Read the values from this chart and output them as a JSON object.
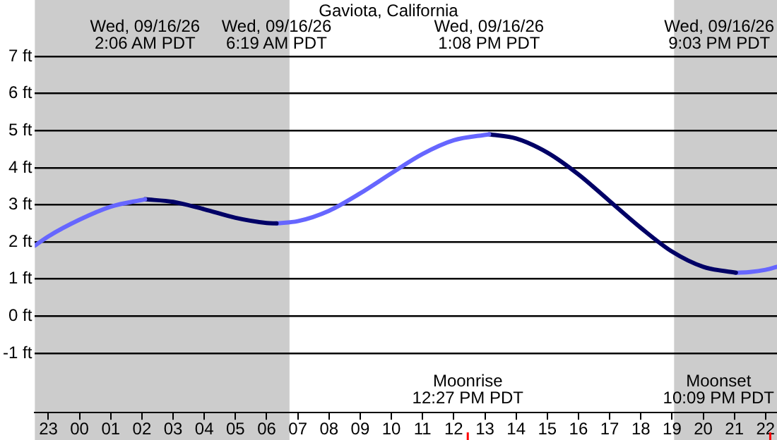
{
  "chart_data": {
    "type": "line",
    "title": "Gaviota, California",
    "series": [
      {
        "color": "#6666ff",
        "x": [
          "--09-15T22:34",
          "--09-15T23:00",
          "--09-16T00:00",
          "--09-16T01:00",
          "--09-16T02:06"
        ],
        "values": [
          1.9,
          2.15,
          2.6,
          2.95,
          3.15
        ]
      },
      {
        "color": "#000066",
        "x": [
          "--09-16T02:06",
          "--09-16T03:00",
          "--09-16T04:00",
          "--09-16T05:00",
          "--09-16T06:00",
          "--09-16T06:19"
        ],
        "values": [
          3.15,
          3.08,
          2.88,
          2.65,
          2.51,
          2.5
        ]
      },
      {
        "color": "#6666ff",
        "x": [
          "--09-16T06:19",
          "--09-16T07:00",
          "--09-16T08:00",
          "--09-16T09:00",
          "--09-16T10:00",
          "--09-16T11:00",
          "--09-16T12:00",
          "--09-16T13:08"
        ],
        "values": [
          2.5,
          2.56,
          2.84,
          3.31,
          3.85,
          4.37,
          4.74,
          4.9
        ]
      },
      {
        "color": "#000066",
        "x": [
          "--09-16T13:08",
          "--09-16T14:00",
          "--09-16T15:00",
          "--09-16T16:00",
          "--09-16T17:00",
          "--09-16T18:00",
          "--09-16T19:00",
          "--09-16T20:00",
          "--09-16T21:03"
        ],
        "values": [
          4.9,
          4.79,
          4.41,
          3.82,
          3.1,
          2.38,
          1.74,
          1.33,
          1.17
        ]
      },
      {
        "color": "#6666ff",
        "x": [
          "--09-16T21:03",
          "--09-16T21:30",
          "--09-16T22:00",
          "--09-16T22:22"
        ],
        "values": [
          1.17,
          1.19,
          1.25,
          1.33
        ]
      }
    ],
    "xlim": [
      "--09-15T22:34",
      "--09-16T22:22"
    ],
    "xticks": [
      {
        "value": "--09-15T23:00",
        "label": "23"
      },
      {
        "value": "--09-16T00:00",
        "label": "00"
      },
      {
        "value": "--09-16T01:00",
        "label": "01"
      },
      {
        "value": "--09-16T02:00",
        "label": "02"
      },
      {
        "value": "--09-16T03:00",
        "label": "03"
      },
      {
        "value": "--09-16T04:00",
        "label": "04"
      },
      {
        "value": "--09-16T05:00",
        "label": "05"
      },
      {
        "value": "--09-16T06:00",
        "label": "06"
      },
      {
        "value": "--09-16T07:00",
        "label": "07"
      },
      {
        "value": "--09-16T08:00",
        "label": "08"
      },
      {
        "value": "--09-16T09:00",
        "label": "09"
      },
      {
        "value": "--09-16T10:00",
        "label": "10"
      },
      {
        "value": "--09-16T11:00",
        "label": "11"
      },
      {
        "value": "--09-16T12:00",
        "label": "12"
      },
      {
        "value": "--09-16T13:00",
        "label": "13"
      },
      {
        "value": "--09-16T14:00",
        "label": "14"
      },
      {
        "value": "--09-16T15:00",
        "label": "15"
      },
      {
        "value": "--09-16T16:00",
        "label": "16"
      },
      {
        "value": "--09-16T17:00",
        "label": "17"
      },
      {
        "value": "--09-16T18:00",
        "label": "18"
      },
      {
        "value": "--09-16T19:00",
        "label": "19"
      },
      {
        "value": "--09-16T20:00",
        "label": "20"
      },
      {
        "value": "--09-16T21:00",
        "label": "21"
      },
      {
        "value": "--09-16T22:00",
        "label": "22"
      }
    ],
    "ylim": [
      -2.6,
      7
    ],
    "yticks": [
      {
        "value": -1,
        "label": "-1 ft"
      },
      {
        "value": 0,
        "label": "0 ft"
      },
      {
        "value": 1,
        "label": "1 ft"
      },
      {
        "value": 2,
        "label": "2 ft"
      },
      {
        "value": 3,
        "label": "3 ft"
      },
      {
        "value": 4,
        "label": "4 ft"
      },
      {
        "value": 5,
        "label": "5 ft"
      },
      {
        "value": 6,
        "label": "6 ft"
      },
      {
        "value": 7,
        "label": "7 ft"
      }
    ],
    "grid": "y",
    "marker": "none",
    "line_style": "solid",
    "bands": [
      {
        "axis": "x",
        "from": "--09-15T22:34",
        "to": "--09-16T06:44",
        "color": "#cccccc"
      },
      {
        "axis": "x",
        "from": "--09-16T19:04",
        "to": "--09-16T22:22",
        "color": "#cccccc"
      }
    ],
    "ref_lines": [
      {
        "axis": "x",
        "value": "--09-16T12:27",
        "label": "Moonrise\n12:27 PM PDT",
        "color": "#ff0000"
      },
      {
        "axis": "x",
        "value": "--09-16T22:09",
        "label": "Moonset\n10:09 PM PDT",
        "color": "#ff0000"
      }
    ],
    "annotations": [
      "Wed, 09/16/26\n2:06 AM PDT",
      "Wed, 09/16/26\n6:19 AM PDT",
      "Wed, 09/16/26\n1:08 PM PDT",
      "Wed, 09/16/26\n9:03 PM PDT"
    ]
  }
}
